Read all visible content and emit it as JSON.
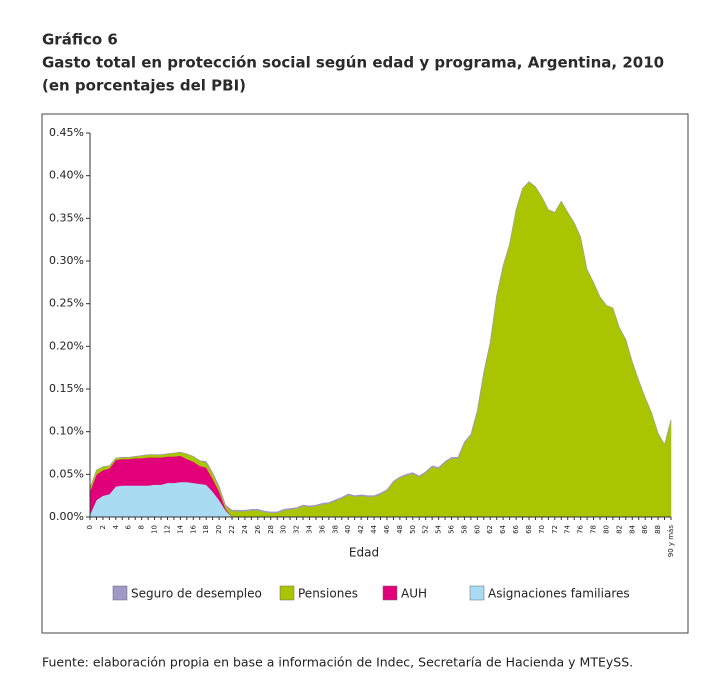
{
  "chart_data": {
    "type": "stacked_area",
    "title_lines": [
      "Gráfico 6",
      "Gasto total en protección social según edad y programa, Argentina, 2010",
      "(en porcentajes del PBI)"
    ],
    "x_label": "Edad",
    "source": "Fuente: elaboración propia en base a información de Indec, Secretaría de Hacienda y MTEySS.",
    "categories": [
      "0",
      null,
      "2",
      null,
      "4",
      null,
      "6",
      null,
      "8",
      null,
      "10",
      null,
      "12",
      null,
      "14",
      null,
      "16",
      null,
      "18",
      null,
      "20",
      null,
      "22",
      null,
      "24",
      null,
      "26",
      null,
      "28",
      null,
      "30",
      null,
      "32",
      null,
      "34",
      null,
      "36",
      null,
      "38",
      null,
      "40",
      null,
      "42",
      null,
      "44",
      null,
      "46",
      null,
      "48",
      null,
      "50",
      null,
      "52",
      null,
      "54",
      null,
      "56",
      null,
      "58",
      null,
      "60",
      null,
      "62",
      null,
      "64",
      null,
      "66",
      null,
      "68",
      null,
      "70",
      null,
      "72",
      null,
      "74",
      null,
      "76",
      null,
      "78",
      null,
      "80",
      null,
      "82",
      null,
      "84",
      null,
      "86",
      null,
      "88",
      null,
      "90 y más"
    ],
    "series": [
      {
        "name": "Seguro de desempleo",
        "color": "#9f98c8",
        "values": [
          0,
          0,
          0,
          0,
          0,
          0,
          0,
          0,
          0,
          0,
          0,
          0,
          0,
          0,
          0,
          0,
          0,
          0,
          0.001,
          0.001,
          0.001,
          0.001,
          0.001,
          0.001,
          0.001,
          0.001,
          0.001,
          0.001,
          0.001,
          0.001,
          0.001,
          0.001,
          0.001,
          0.001,
          0.001,
          0.001,
          0.001,
          0.001,
          0.001,
          0.001,
          0.001,
          0.001,
          0.001,
          0.001,
          0.001,
          0.001,
          0.001,
          0.001,
          0.001,
          0.001,
          0.001,
          0.001,
          0.001,
          0.001,
          0.001,
          0.001,
          0.001,
          0.001,
          0.001,
          0.001,
          0.001,
          0.001,
          0.001,
          0.001,
          0.001,
          0,
          0,
          0,
          0,
          0,
          0,
          0,
          0,
          0,
          0,
          0,
          0,
          0,
          0,
          0,
          0,
          0,
          0,
          0,
          0,
          0,
          0,
          0,
          0,
          0,
          0
        ]
      },
      {
        "name": "Pensiones",
        "color": "#a9c400",
        "values": [
          0.004,
          0.005,
          0.004,
          0.003,
          0.002,
          0.002,
          0.002,
          0.002,
          0.003,
          0.003,
          0.003,
          0.003,
          0.003,
          0.004,
          0.004,
          0.006,
          0.006,
          0.006,
          0.006,
          0.006,
          0.005,
          0.003,
          0.007,
          0.007,
          0.007,
          0.008,
          0.008,
          0.006,
          0.005,
          0.005,
          0.008,
          0.009,
          0.01,
          0.013,
          0.012,
          0.013,
          0.015,
          0.016,
          0.019,
          0.022,
          0.026,
          0.024,
          0.025,
          0.024,
          0.024,
          0.027,
          0.031,
          0.041,
          0.046,
          0.049,
          0.051,
          0.047,
          0.052,
          0.059,
          0.057,
          0.064,
          0.069,
          0.069,
          0.087,
          0.096,
          0.124,
          0.169,
          0.204,
          0.259,
          0.294,
          0.32,
          0.36,
          0.385,
          0.393,
          0.387,
          0.375,
          0.36,
          0.357,
          0.37,
          0.357,
          0.345,
          0.328,
          0.29,
          0.275,
          0.258,
          0.248,
          0.245,
          0.222,
          0.208,
          0.182,
          0.16,
          0.14,
          0.122,
          0.098,
          0.085,
          0.114
        ]
      },
      {
        "name": "AUH",
        "color": "#e2007a",
        "values": [
          0.027,
          0.03,
          0.03,
          0.03,
          0.031,
          0.031,
          0.031,
          0.032,
          0.032,
          0.033,
          0.032,
          0.032,
          0.031,
          0.031,
          0.031,
          0.027,
          0.025,
          0.021,
          0.02,
          0.015,
          0.01,
          0.002,
          0,
          0,
          0,
          0,
          0,
          0,
          0,
          0,
          0,
          0,
          0,
          0,
          0,
          0,
          0,
          0,
          0,
          0,
          0,
          0,
          0,
          0,
          0,
          0,
          0,
          0,
          0,
          0,
          0,
          0,
          0,
          0,
          0,
          0,
          0,
          0,
          0,
          0,
          0,
          0,
          0,
          0,
          0,
          0,
          0,
          0,
          0,
          0,
          0,
          0,
          0,
          0,
          0,
          0,
          0,
          0,
          0,
          0,
          0,
          0,
          0,
          0,
          0,
          0,
          0,
          0,
          0,
          0,
          0
        ]
      },
      {
        "name": "Asignaciones familiares",
        "color": "#a9dcf3",
        "values": [
          0.003,
          0.02,
          0.025,
          0.027,
          0.036,
          0.037,
          0.037,
          0.037,
          0.037,
          0.037,
          0.038,
          0.038,
          0.04,
          0.04,
          0.041,
          0.041,
          0.04,
          0.039,
          0.038,
          0.03,
          0.02,
          0.008,
          0,
          0,
          0,
          0,
          0,
          0,
          0,
          0,
          0,
          0,
          0,
          0,
          0,
          0,
          0,
          0,
          0,
          0,
          0,
          0,
          0,
          0,
          0,
          0,
          0,
          0,
          0,
          0,
          0,
          0,
          0,
          0,
          0,
          0,
          0,
          0,
          0,
          0,
          0,
          0,
          0,
          0,
          0,
          0,
          0,
          0,
          0,
          0,
          0,
          0,
          0,
          0,
          0,
          0,
          0,
          0,
          0,
          0,
          0,
          0,
          0,
          0,
          0,
          0,
          0,
          0,
          0,
          0,
          0
        ]
      }
    ],
    "ylim": [
      0,
      0.45
    ],
    "yticks": [
      {
        "value": 0,
        "label": "0.00%"
      },
      {
        "value": 0.05,
        "label": "0.05%"
      },
      {
        "value": 0.1,
        "label": "0.10%"
      },
      {
        "value": 0.15,
        "label": "0.15%"
      },
      {
        "value": 0.2,
        "label": "0.20%"
      },
      {
        "value": 0.25,
        "label": "0.25%"
      },
      {
        "value": 0.3,
        "label": "0.30%"
      },
      {
        "value": 0.35,
        "label": "0.35%"
      },
      {
        "value": 0.4,
        "label": "0.40%"
      },
      {
        "value": 0.45,
        "label": "0.45%"
      }
    ],
    "grid": false,
    "legend": "bottom"
  }
}
